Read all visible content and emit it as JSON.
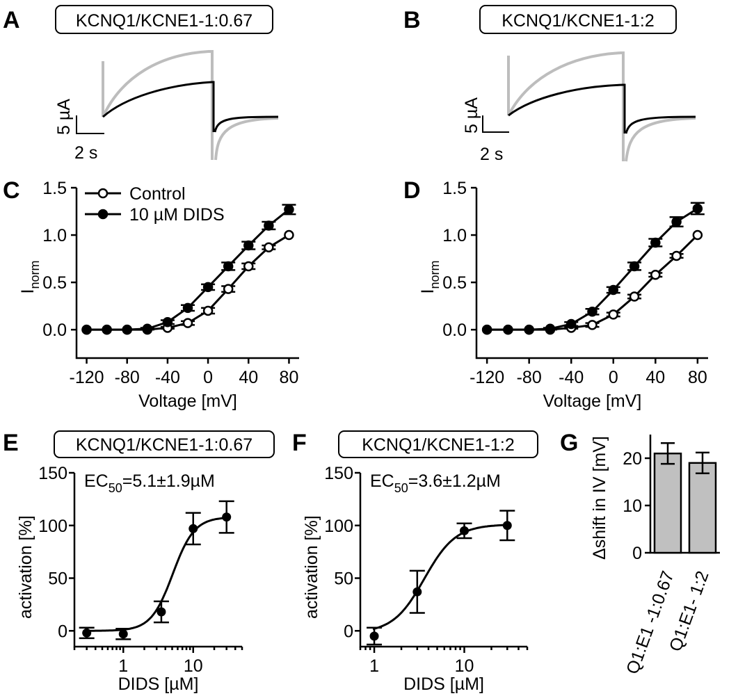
{
  "panels": {
    "A": {
      "letter": "A",
      "label": "KCNQ1/KCNE1-1:0.67",
      "scale_y": "5 µA",
      "scale_x": "2 s"
    },
    "B": {
      "letter": "B",
      "label": "KCNQ1/KCNE1-1:2",
      "scale_y": "5 µA",
      "scale_x": "2 s"
    },
    "C": {
      "letter": "C"
    },
    "D": {
      "letter": "D"
    },
    "E": {
      "letter": "E",
      "label": "KCNQ1/KCNE1-1:0.67"
    },
    "F": {
      "letter": "F",
      "label": "KCNQ1/KCNE1-1:2"
    },
    "G": {
      "letter": "G"
    }
  },
  "colors": {
    "control_trace": "#bdbdbd",
    "dids_trace": "#000000",
    "bar_fill": "#c0c0c0"
  },
  "chart_data": [
    {
      "id": "C",
      "type": "line",
      "title": "",
      "xlabel": "Voltage [mV]",
      "ylabel": "I",
      "ylabel_sub": "norm",
      "xlim": [
        -130,
        90
      ],
      "ylim": [
        -0.3,
        1.5
      ],
      "xticks": [
        -120,
        -80,
        -40,
        0,
        40,
        80
      ],
      "yticks": [
        0.0,
        0.5,
        1.0,
        1.5
      ],
      "ytick_labels": [
        "0.0",
        "0.5",
        "1.0",
        "1.5"
      ],
      "legend": {
        "position": "top-left",
        "entries": [
          "Control",
          "10 µM DIDS"
        ]
      },
      "x": [
        -120,
        -100,
        -80,
        -60,
        -40,
        -20,
        0,
        20,
        40,
        60,
        80
      ],
      "series": [
        {
          "name": "Control",
          "marker": "open-circle",
          "values": [
            0.0,
            0.0,
            0.0,
            0.0,
            0.02,
            0.07,
            0.2,
            0.43,
            0.67,
            0.87,
            1.0
          ],
          "errors": [
            0.0,
            0.0,
            0.0,
            0.0,
            0.01,
            0.02,
            0.03,
            0.03,
            0.03,
            0.02,
            0.0
          ]
        },
        {
          "name": "10 µM DIDS",
          "marker": "filled-circle",
          "values": [
            0.0,
            0.0,
            0.0,
            0.01,
            0.08,
            0.23,
            0.45,
            0.67,
            0.89,
            1.1,
            1.27
          ],
          "errors": [
            0.0,
            0.0,
            0.0,
            0.01,
            0.02,
            0.03,
            0.03,
            0.04,
            0.04,
            0.04,
            0.05
          ]
        }
      ]
    },
    {
      "id": "D",
      "type": "line",
      "title": "",
      "xlabel": "Voltage [mV]",
      "ylabel": "I",
      "ylabel_sub": "norm",
      "xlim": [
        -130,
        90
      ],
      "ylim": [
        -0.3,
        1.5
      ],
      "xticks": [
        -120,
        -80,
        -40,
        0,
        40,
        80
      ],
      "yticks": [
        0.0,
        0.5,
        1.0,
        1.5
      ],
      "ytick_labels": [
        "0.0",
        "0.5",
        "1.0",
        "1.5"
      ],
      "x": [
        -120,
        -100,
        -80,
        -60,
        -40,
        -20,
        0,
        20,
        40,
        60,
        80
      ],
      "series": [
        {
          "name": "Control",
          "marker": "open-circle",
          "values": [
            0.0,
            0.0,
            0.0,
            0.0,
            0.02,
            0.05,
            0.16,
            0.35,
            0.58,
            0.78,
            1.0
          ],
          "errors": [
            0.0,
            0.0,
            0.0,
            0.0,
            0.01,
            0.02,
            0.02,
            0.02,
            0.02,
            0.02,
            0.0
          ]
        },
        {
          "name": "10 µM DIDS",
          "marker": "filled-circle",
          "values": [
            0.0,
            0.0,
            0.0,
            0.01,
            0.06,
            0.19,
            0.42,
            0.67,
            0.92,
            1.14,
            1.28
          ],
          "errors": [
            0.0,
            0.0,
            0.0,
            0.01,
            0.02,
            0.03,
            0.03,
            0.04,
            0.04,
            0.05,
            0.06
          ]
        }
      ]
    },
    {
      "id": "E",
      "type": "scatter",
      "xscale": "log",
      "title": "",
      "annotation": {
        "prefix": "EC",
        "sub": "50",
        "suffix": "=5.1±1.9µM"
      },
      "xlabel": "DIDS [µM]",
      "ylabel": "activation [%]",
      "xlim": [
        0.2,
        50
      ],
      "ylim": [
        -15,
        150
      ],
      "xticks": [
        1,
        10
      ],
      "yticks": [
        0,
        50,
        100,
        150
      ],
      "x": [
        0.3,
        1,
        3.5,
        10,
        30
      ],
      "values": [
        -2,
        -3,
        18,
        97,
        108
      ],
      "errors": [
        5,
        5,
        10,
        15,
        15
      ],
      "fit": {
        "type": "hill",
        "bottom": 0,
        "top": 108,
        "ec50": 5.1,
        "n": 2.8
      }
    },
    {
      "id": "F",
      "type": "scatter",
      "xscale": "log",
      "title": "",
      "annotation": {
        "prefix": "EC",
        "sub": "50",
        "suffix": "=3.6±1.2µM"
      },
      "xlabel": "DIDS [µM]",
      "ylabel": "activation [%]",
      "xlim": [
        0.7,
        50
      ],
      "ylim": [
        -15,
        150
      ],
      "xticks": [
        1,
        10
      ],
      "yticks": [
        0,
        50,
        100,
        150
      ],
      "x": [
        1,
        3,
        10,
        30
      ],
      "values": [
        -5,
        37,
        95,
        100
      ],
      "errors": [
        8,
        20,
        7,
        14
      ],
      "fit": {
        "type": "hill",
        "bottom": -2,
        "top": 101,
        "ec50": 3.6,
        "n": 2.5
      }
    },
    {
      "id": "G",
      "type": "bar",
      "title": "",
      "xlabel": "",
      "ylabel": "Δshift in IV [mV]",
      "ylim": [
        0,
        25
      ],
      "yticks": [
        0,
        10,
        20
      ],
      "categories": [
        "Q1:E1 -1:0.67",
        "Q1:E1- 1:2"
      ],
      "values": [
        21,
        19
      ],
      "errors": [
        2.2,
        2.2
      ]
    }
  ]
}
